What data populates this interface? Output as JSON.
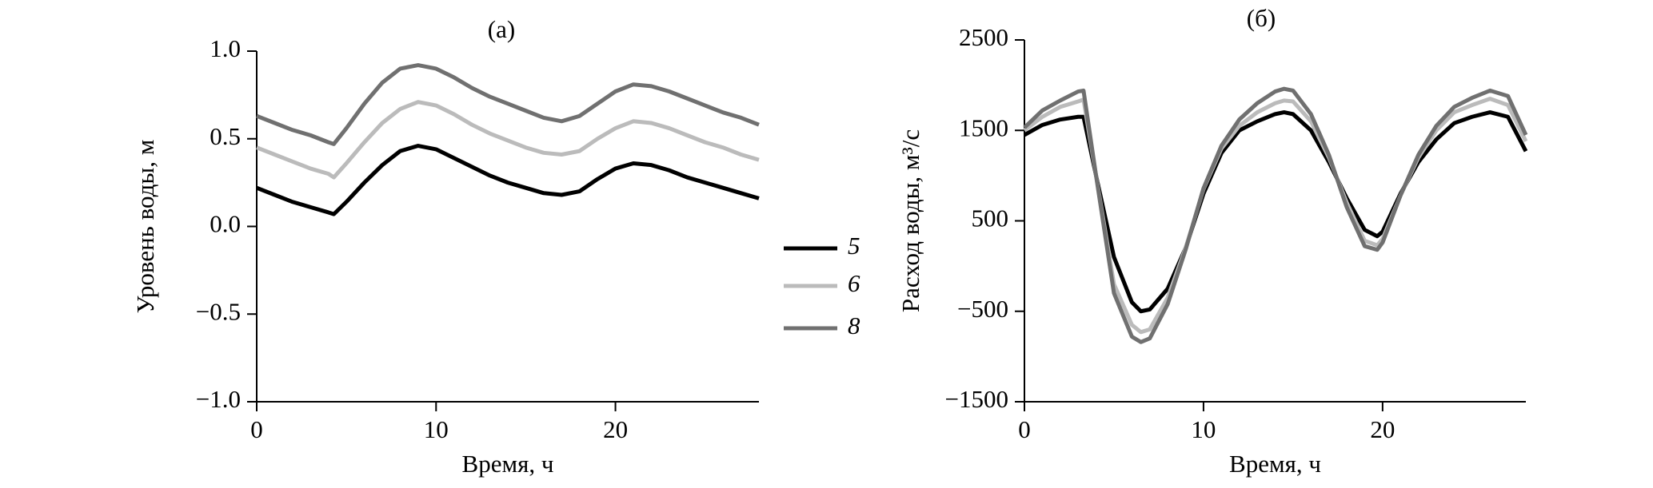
{
  "chart_data": [
    {
      "type": "line",
      "title": "(a)",
      "x_label": "Время, ч",
      "y_label": "Уровень воды, м",
      "x": [
        0,
        1,
        2,
        3,
        4,
        4.3,
        5,
        6,
        7,
        8,
        9,
        10,
        11,
        12,
        13,
        14,
        15,
        16,
        17,
        18,
        19,
        20,
        21,
        22,
        23,
        24,
        25,
        26,
        27,
        28
      ],
      "series": [
        {
          "name": "5",
          "color": "#000000",
          "values": [
            0.22,
            0.18,
            0.14,
            0.11,
            0.08,
            0.07,
            0.14,
            0.25,
            0.35,
            0.43,
            0.46,
            0.44,
            0.39,
            0.34,
            0.29,
            0.25,
            0.22,
            0.19,
            0.18,
            0.2,
            0.27,
            0.33,
            0.36,
            0.35,
            0.32,
            0.28,
            0.25,
            0.22,
            0.19,
            0.16
          ]
        },
        {
          "name": "6",
          "color": "#bbbbbb",
          "values": [
            0.45,
            0.41,
            0.37,
            0.33,
            0.3,
            0.28,
            0.36,
            0.48,
            0.59,
            0.67,
            0.71,
            0.69,
            0.64,
            0.58,
            0.53,
            0.49,
            0.45,
            0.42,
            0.41,
            0.43,
            0.5,
            0.56,
            0.6,
            0.59,
            0.56,
            0.52,
            0.48,
            0.45,
            0.41,
            0.38
          ]
        },
        {
          "name": "8",
          "color": "#707070",
          "values": [
            0.63,
            0.59,
            0.55,
            0.52,
            0.48,
            0.47,
            0.56,
            0.7,
            0.82,
            0.9,
            0.92,
            0.9,
            0.85,
            0.79,
            0.74,
            0.7,
            0.66,
            0.62,
            0.6,
            0.63,
            0.7,
            0.77,
            0.81,
            0.8,
            0.77,
            0.73,
            0.69,
            0.65,
            0.62,
            0.58
          ]
        }
      ],
      "xlim": [
        0,
        28
      ],
      "xticks": [
        0,
        10,
        20
      ],
      "ylim": [
        -1,
        1
      ],
      "yticks": [
        {
          "value": -1,
          "label": "−1.0"
        },
        {
          "value": -0.5,
          "label": "−0.5"
        },
        {
          "value": 0,
          "label": "0.0"
        },
        {
          "value": 0.5,
          "label": "0.5"
        },
        {
          "value": 1,
          "label": "1.0"
        }
      ],
      "grid": false
    },
    {
      "type": "line",
      "title": "(б)",
      "x_label": "Время, ч",
      "y_label": "Расход воды, м³/с",
      "x": [
        0,
        1,
        2,
        3,
        3.3,
        4,
        5,
        6,
        6.5,
        7,
        8,
        9,
        10,
        11,
        12,
        13,
        14,
        14.5,
        15,
        16,
        17,
        18,
        19,
        19.7,
        20,
        21,
        22,
        23,
        24,
        25,
        26,
        27,
        28
      ],
      "series": [
        {
          "color": "#000000",
          "values": [
            1450,
            1560,
            1620,
            1650,
            1650,
            1000,
            100,
            -400,
            -500,
            -480,
            -250,
            200,
            800,
            1250,
            1500,
            1600,
            1680,
            1700,
            1680,
            1500,
            1150,
            750,
            400,
            330,
            380,
            800,
            1150,
            1400,
            1580,
            1650,
            1700,
            1650,
            1270
          ]
        },
        {
          "color": "#bbbbbb",
          "values": [
            1500,
            1650,
            1760,
            1820,
            1840,
            1000,
            -200,
            -650,
            -730,
            -700,
            -350,
            200,
            850,
            1300,
            1550,
            1700,
            1800,
            1830,
            1820,
            1600,
            1200,
            700,
            280,
            230,
            300,
            780,
            1200,
            1500,
            1700,
            1780,
            1850,
            1780,
            1380
          ]
        },
        {
          "color": "#707070",
          "values": [
            1530,
            1720,
            1830,
            1930,
            1940,
            1000,
            -300,
            -780,
            -840,
            -800,
            -420,
            180,
            860,
            1330,
            1620,
            1800,
            1930,
            1960,
            1940,
            1680,
            1230,
            650,
            220,
            180,
            260,
            780,
            1230,
            1550,
            1760,
            1860,
            1940,
            1880,
            1450
          ]
        }
      ],
      "xlim": [
        0,
        28
      ],
      "xticks": [
        0,
        10,
        20
      ],
      "ylim": [
        -1500,
        2500
      ],
      "yticks": [
        {
          "value": -1500,
          "label": "−1500"
        },
        {
          "value": -500,
          "label": "−500"
        },
        500,
        1500,
        2500
      ],
      "grid": false
    }
  ]
}
